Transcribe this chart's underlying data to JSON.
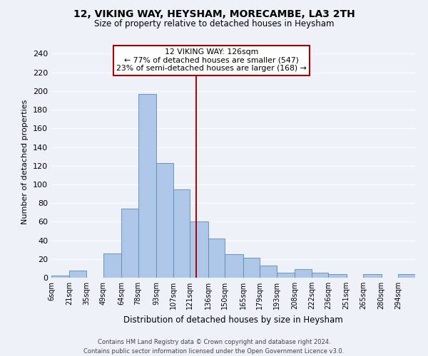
{
  "title": "12, VIKING WAY, HEYSHAM, MORECAMBE, LA3 2TH",
  "subtitle": "Size of property relative to detached houses in Heysham",
  "xlabel": "Distribution of detached houses by size in Heysham",
  "ylabel": "Number of detached properties",
  "bin_labels": [
    "6sqm",
    "21sqm",
    "35sqm",
    "49sqm",
    "64sqm",
    "78sqm",
    "93sqm",
    "107sqm",
    "121sqm",
    "136sqm",
    "150sqm",
    "165sqm",
    "179sqm",
    "193sqm",
    "208sqm",
    "222sqm",
    "236sqm",
    "251sqm",
    "265sqm",
    "280sqm",
    "294sqm"
  ],
  "bin_edges": [
    6,
    21,
    35,
    49,
    64,
    78,
    93,
    107,
    121,
    136,
    150,
    165,
    179,
    193,
    208,
    222,
    236,
    251,
    265,
    280,
    294
  ],
  "bar_heights": [
    2,
    8,
    0,
    26,
    74,
    197,
    123,
    95,
    60,
    42,
    25,
    21,
    13,
    5,
    9,
    5,
    4,
    0,
    4,
    0,
    4
  ],
  "bar_color": "#aec6e8",
  "bar_edge_color": "#5a8ab8",
  "vline_x": 126,
  "vline_color": "#aa0000",
  "annotation_line1": "12 VIKING WAY: 126sqm",
  "annotation_line2": "← 77% of detached houses are smaller (547)",
  "annotation_line3": "23% of semi-detached houses are larger (168) →",
  "box_edge_color": "#aa0000",
  "ylim": [
    0,
    248
  ],
  "yticks": [
    0,
    20,
    40,
    60,
    80,
    100,
    120,
    140,
    160,
    180,
    200,
    220,
    240
  ],
  "footer_line1": "Contains HM Land Registry data © Crown copyright and database right 2024.",
  "footer_line2": "Contains public sector information licensed under the Open Government Licence v3.0.",
  "background_color": "#eef2f8",
  "grid_color": "#d8e0ee"
}
